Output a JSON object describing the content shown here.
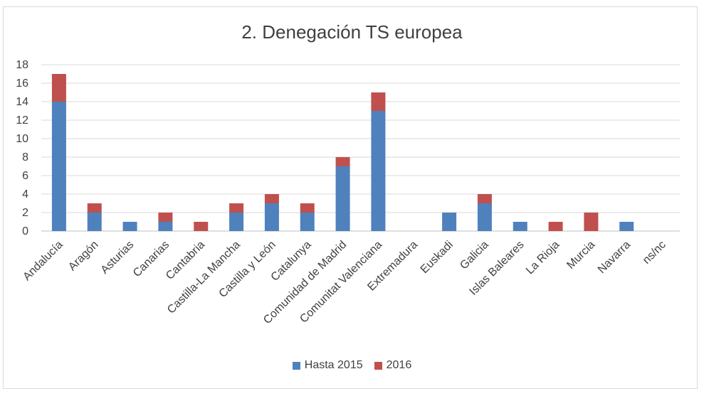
{
  "chart_data": {
    "type": "bar",
    "stacked": true,
    "title": "2. Denegación TS europea",
    "xlabel": "",
    "ylabel": "",
    "ylim": [
      0,
      18
    ],
    "yticks": [
      0,
      2,
      4,
      6,
      8,
      10,
      12,
      14,
      16,
      18
    ],
    "grid": true,
    "legend_position": "bottom",
    "categories": [
      "Andalucía",
      "Aragón",
      "Asturias",
      "Canarias",
      "Cantabria",
      "Castilla-La Mancha",
      "Castilla y León",
      "Catalunya",
      "Comunidad de Madrid",
      "Comunitat Valenciana",
      "Extremadura",
      "Euskadi",
      "Galicia",
      "Islas Baleares",
      "La Rioja",
      "Murcia",
      "Navarra",
      "ns/nc"
    ],
    "series": [
      {
        "name": "Hasta 2015",
        "color": "#4f81bd",
        "values": [
          14,
          2,
          1,
          1,
          0,
          2,
          3,
          2,
          7,
          13,
          0,
          2,
          3,
          1,
          0,
          0,
          1,
          0
        ]
      },
      {
        "name": "2016",
        "color": "#c0504d",
        "values": [
          3,
          1,
          0,
          1,
          1,
          1,
          1,
          1,
          1,
          2,
          0,
          0,
          1,
          0,
          1,
          2,
          0,
          0
        ]
      }
    ]
  }
}
